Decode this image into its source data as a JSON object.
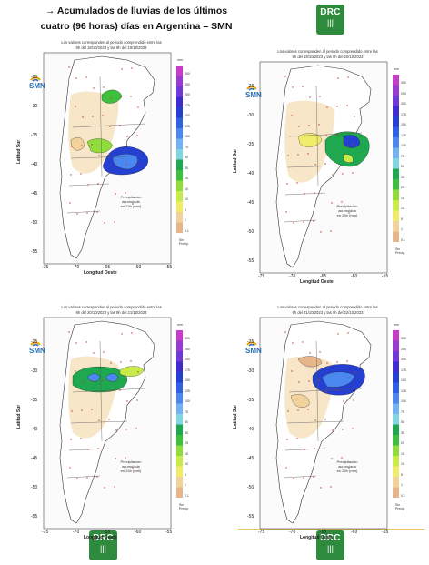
{
  "header": {
    "title_line1": "→ Acumulados de lluvias de los últimos",
    "title_line2": "cuatro (96 horas) días en Argentina – SMN"
  },
  "badge": {
    "text": "DRC",
    "icon": "bars-icon"
  },
  "colors": {
    "brand_green": "#2e8b3d"
  },
  "map_common": {
    "logo_text": "SMN",
    "y_axis_label": "Latitud Sur",
    "x_axis_label": "Longitud Oeste",
    "x_ticks": [
      "-75",
      "-70",
      "-65",
      "-60",
      "-55"
    ],
    "y_ticks": [
      "-25",
      "-30",
      "-35",
      "-40",
      "-45",
      "-50",
      "-55"
    ],
    "legend_unit": "mm",
    "legend_values": [
      "300",
      "250",
      "200",
      "175",
      "150",
      "125",
      "100",
      "75",
      "50",
      "35",
      "25",
      "15",
      "10",
      "5",
      "1",
      "0.1"
    ],
    "legend_colors": [
      "#c93cc9",
      "#9a3ad0",
      "#7038d8",
      "#3f2ccc",
      "#2540d0",
      "#2f62e2",
      "#4a88ef",
      "#74b2f5",
      "#7ed7e0",
      "#1fa84f",
      "#3dc03d",
      "#8fdc3a",
      "#c8ea4a",
      "#f0ec6a",
      "#f1d29a",
      "#e7b58a"
    ],
    "no_precip_label": "Sin Precip.",
    "accum_label_1": "Precipitación acumulada",
    "accum_label_2": "en 24h (mm)"
  },
  "maps": [
    {
      "caption_1": "Los valores corresponden al periodo comprendido entre las",
      "caption_2": "9h del 18/10/2023 y las 9h del 19/10/2023"
    },
    {
      "caption_1": "Los valores corresponden al periodo comprendido entre las",
      "caption_2": "9h del 19/10/2023 y las 9h del 20/10/2023"
    },
    {
      "caption_1": "Los valores corresponden al periodo comprendido entre las",
      "caption_2": "9h del 20/10/2023 y las 9h del 21/10/2023"
    },
    {
      "caption_1": "Los valores corresponden al periodo comprendido entre las",
      "caption_2": "9h del 21/10/2023 y las 9h del 22/10/2023"
    }
  ]
}
